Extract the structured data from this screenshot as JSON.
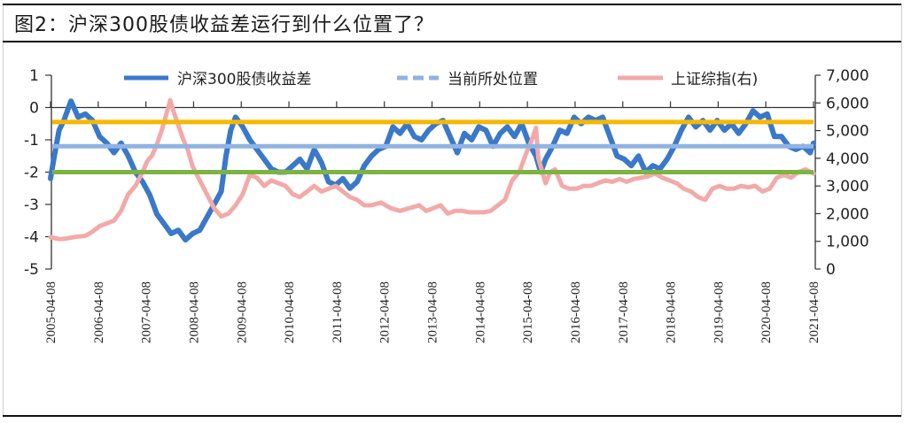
{
  "title": "图2：沪深300股债收益差运行到什么位置了？",
  "chart_data": {
    "type": "line",
    "title": "图2：沪深300股债收益差运行到什么位置了？",
    "xlabel": "",
    "ylabel": "",
    "y_left": {
      "ticks": [
        1,
        0,
        -1,
        -2,
        -3,
        -4,
        -5
      ],
      "ylim": [
        -5,
        1
      ]
    },
    "y_right": {
      "ticks": [
        "7,000",
        "6,000",
        "5,000",
        "4,000",
        "3,000",
        "2,000",
        "1,000",
        "0"
      ],
      "ylim": [
        0,
        7000
      ],
      "label": "上证综指(右)"
    },
    "x_ticks": [
      "2005-04-08",
      "2006-04-08",
      "2007-04-08",
      "2008-04-08",
      "2009-04-08",
      "2010-04-08",
      "2011-04-08",
      "2012-04-08",
      "2013-04-08",
      "2014-04-08",
      "2015-04-08",
      "2016-04-08",
      "2017-04-08",
      "2018-04-08",
      "2019-04-08",
      "2020-04-08",
      "2021-04-08"
    ],
    "legend": [
      "沪深300股债收益差",
      "当前所处位置",
      "上证综指(右)"
    ],
    "grid": false,
    "reference_lines": [
      {
        "name": "upper band",
        "value": -0.45,
        "color": "#f5b800"
      },
      {
        "name": "当前所处位置",
        "value": -1.2,
        "color": "#8fb4e3"
      },
      {
        "name": "lower band",
        "value": -2.0,
        "color": "#7cb342"
      }
    ],
    "series": [
      {
        "name": "沪深300股债收益差",
        "axis": "left",
        "color": "#3a78c9",
        "x": [
          2005.27,
          2005.35,
          2005.45,
          2005.55,
          2005.7,
          2005.85,
          2006.0,
          2006.15,
          2006.3,
          2006.45,
          2006.6,
          2006.75,
          2006.9,
          2007.05,
          2007.2,
          2007.35,
          2007.5,
          2007.65,
          2007.8,
          2007.95,
          2008.1,
          2008.25,
          2008.4,
          2008.55,
          2008.7,
          2008.85,
          2008.95,
          2009.05,
          2009.15,
          2009.3,
          2009.45,
          2009.6,
          2009.75,
          2009.9,
          2010.05,
          2010.2,
          2010.35,
          2010.5,
          2010.65,
          2010.8,
          2010.95,
          2011.1,
          2011.25,
          2011.4,
          2011.55,
          2011.7,
          2011.85,
          2012.0,
          2012.15,
          2012.3,
          2012.45,
          2012.6,
          2012.75,
          2012.9,
          2013.05,
          2013.2,
          2013.35,
          2013.5,
          2013.65,
          2013.8,
          2013.95,
          2014.1,
          2014.25,
          2014.4,
          2014.55,
          2014.7,
          2014.85,
          2015.0,
          2015.15,
          2015.3,
          2015.45,
          2015.55,
          2015.65,
          2015.8,
          2015.95,
          2016.1,
          2016.25,
          2016.4,
          2016.55,
          2016.7,
          2016.85,
          2017.0,
          2017.15,
          2017.3,
          2017.45,
          2017.6,
          2017.75,
          2017.9,
          2018.05,
          2018.2,
          2018.35,
          2018.5,
          2018.65,
          2018.8,
          2018.95,
          2019.1,
          2019.25,
          2019.4,
          2019.55,
          2019.7,
          2019.85,
          2020.0,
          2020.15,
          2020.3,
          2020.45,
          2020.6,
          2020.75,
          2020.9,
          2021.05,
          2021.2,
          2021.27
        ],
        "values": [
          -2.2,
          -1.5,
          -0.7,
          -0.4,
          0.2,
          -0.3,
          -0.2,
          -0.4,
          -0.9,
          -1.1,
          -1.4,
          -1.1,
          -1.5,
          -2.0,
          -2.3,
          -2.7,
          -3.3,
          -3.6,
          -3.9,
          -3.8,
          -4.1,
          -3.9,
          -3.8,
          -3.4,
          -3.0,
          -2.6,
          -1.5,
          -0.7,
          -0.3,
          -0.6,
          -1.0,
          -1.3,
          -1.6,
          -1.9,
          -2.0,
          -2.0,
          -1.8,
          -1.6,
          -1.9,
          -1.3,
          -1.7,
          -2.3,
          -2.4,
          -2.2,
          -2.5,
          -2.3,
          -1.8,
          -1.5,
          -1.3,
          -1.2,
          -0.6,
          -0.8,
          -0.5,
          -0.9,
          -1.0,
          -0.7,
          -0.5,
          -0.4,
          -0.9,
          -1.4,
          -0.8,
          -1.0,
          -0.6,
          -0.7,
          -1.2,
          -0.8,
          -0.6,
          -0.9,
          -0.5,
          -1.1,
          -1.5,
          -2.0,
          -1.6,
          -1.2,
          -0.7,
          -0.8,
          -0.3,
          -0.5,
          -0.3,
          -0.4,
          -0.3,
          -0.9,
          -1.5,
          -1.6,
          -1.8,
          -1.5,
          -2.0,
          -1.8,
          -1.9,
          -1.6,
          -1.2,
          -0.7,
          -0.3,
          -0.6,
          -0.4,
          -0.7,
          -0.4,
          -0.7,
          -0.5,
          -0.8,
          -0.5,
          -0.1,
          -0.3,
          -0.2,
          -0.9,
          -0.9,
          -1.2,
          -1.3,
          -1.2,
          -1.4,
          -1.1
        ]
      },
      {
        "name": "上证综指(右)",
        "axis": "right",
        "color": "#f2aaa8",
        "x": [
          2005.27,
          2005.45,
          2005.6,
          2005.8,
          2006.0,
          2006.15,
          2006.3,
          2006.45,
          2006.6,
          2006.75,
          2006.9,
          2007.05,
          2007.2,
          2007.3,
          2007.4,
          2007.5,
          2007.6,
          2007.7,
          2007.78,
          2007.85,
          2007.95,
          2008.05,
          2008.15,
          2008.25,
          2008.4,
          2008.55,
          2008.7,
          2008.85,
          2009.0,
          2009.15,
          2009.3,
          2009.45,
          2009.6,
          2009.75,
          2009.9,
          2010.05,
          2010.2,
          2010.35,
          2010.5,
          2010.65,
          2010.8,
          2010.95,
          2011.1,
          2011.25,
          2011.4,
          2011.55,
          2011.7,
          2011.85,
          2012.0,
          2012.2,
          2012.4,
          2012.6,
          2012.8,
          2013.0,
          2013.15,
          2013.3,
          2013.45,
          2013.6,
          2013.75,
          2013.9,
          2014.05,
          2014.2,
          2014.35,
          2014.5,
          2014.65,
          2014.8,
          2014.95,
          2015.1,
          2015.25,
          2015.35,
          2015.45,
          2015.5,
          2015.55,
          2015.65,
          2015.75,
          2015.85,
          2016.0,
          2016.15,
          2016.3,
          2016.45,
          2016.6,
          2016.75,
          2016.9,
          2017.05,
          2017.2,
          2017.35,
          2017.5,
          2017.65,
          2017.8,
          2017.95,
          2018.1,
          2018.25,
          2018.4,
          2018.55,
          2018.7,
          2018.85,
          2019.0,
          2019.15,
          2019.3,
          2019.45,
          2019.6,
          2019.75,
          2019.9,
          2020.05,
          2020.2,
          2020.35,
          2020.5,
          2020.65,
          2020.8,
          2020.95,
          2021.1,
          2021.27
        ],
        "values": [
          1150,
          1080,
          1100,
          1160,
          1200,
          1350,
          1550,
          1650,
          1750,
          2100,
          2700,
          3000,
          3500,
          3900,
          4100,
          4500,
          5000,
          5600,
          6100,
          5700,
          5200,
          4700,
          4300,
          3700,
          3200,
          2700,
          2200,
          1900,
          2000,
          2300,
          2700,
          3400,
          3300,
          3000,
          3200,
          3100,
          3000,
          2700,
          2600,
          2800,
          3000,
          2800,
          2900,
          3000,
          2800,
          2600,
          2500,
          2300,
          2300,
          2400,
          2200,
          2100,
          2200,
          2300,
          2100,
          2200,
          2300,
          2000,
          2100,
          2100,
          2050,
          2050,
          2050,
          2100,
          2300,
          2500,
          3200,
          3500,
          4200,
          4600,
          5100,
          4000,
          3700,
          3100,
          3500,
          3600,
          3000,
          2900,
          2900,
          3000,
          3000,
          3100,
          3200,
          3150,
          3250,
          3150,
          3250,
          3300,
          3350,
          3450,
          3300,
          3200,
          3100,
          2900,
          2800,
          2600,
          2500,
          2900,
          3000,
          2900,
          2900,
          3000,
          2950,
          3000,
          2800,
          2900,
          3300,
          3400,
          3300,
          3500,
          3600,
          3450
        ]
      }
    ]
  }
}
